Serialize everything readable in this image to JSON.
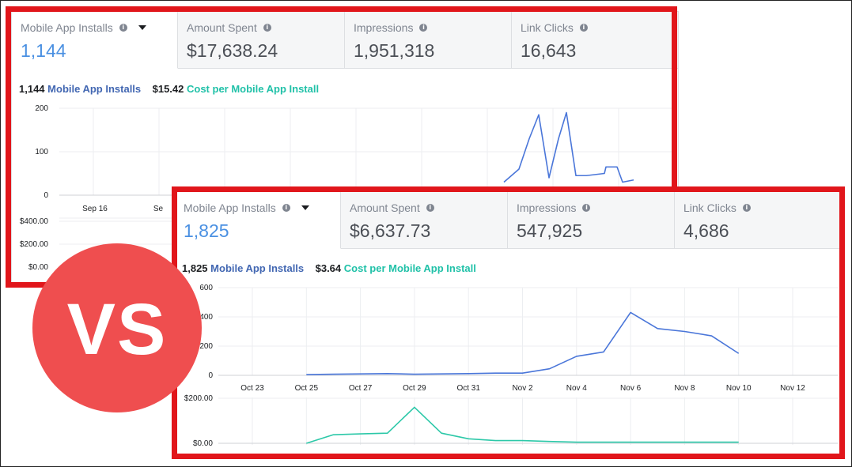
{
  "before": {
    "tabs": [
      {
        "label": "Mobile App Installs",
        "value": "1,144",
        "active": true
      },
      {
        "label": "Amount Spent",
        "value": "$17,638.24",
        "active": false
      },
      {
        "label": "Impressions",
        "value": "1,951,318",
        "active": false
      },
      {
        "label": "Link Clicks",
        "value": "16,643",
        "active": false
      }
    ],
    "summary": {
      "count": "1,144",
      "count_label": "Mobile App Installs",
      "cost": "$15.42",
      "cost_label": "Cost per Mobile App Install"
    },
    "y_ticks": [
      "200",
      "100",
      "0"
    ],
    "x_ticks": [
      "Sep 16",
      "Se"
    ],
    "cost_ticks": [
      "$400.00",
      "$200.00",
      "$0.00"
    ]
  },
  "after": {
    "tabs": [
      {
        "label": "Mobile App Installs",
        "value": "1,825",
        "active": true
      },
      {
        "label": "Amount Spent",
        "value": "$6,637.73",
        "active": false
      },
      {
        "label": "Impressions",
        "value": "547,925",
        "active": false
      },
      {
        "label": "Link Clicks",
        "value": "4,686",
        "active": false
      }
    ],
    "summary": {
      "count": "1,825",
      "count_label": "Mobile App Installs",
      "cost": "$3.64",
      "cost_label": "Cost per Mobile App Install"
    },
    "y_ticks": [
      "600",
      "400",
      "200",
      "0"
    ],
    "x_ticks": [
      "Oct 23",
      "Oct 25",
      "Oct 27",
      "Oct 29",
      "Oct 31",
      "Nov 2",
      "Nov 4",
      "Nov 6",
      "Nov 8",
      "Nov 10",
      "Nov 12"
    ],
    "cost_ticks": [
      "$200.00",
      "$0.00"
    ]
  },
  "vs_label": "VS",
  "colors": {
    "red_border": "#e1161b",
    "installs_line": "#4a76d9",
    "cost_line": "#2cc8a8",
    "vs_circle": "#ef4e4f"
  },
  "chart_data": [
    {
      "type": "line",
      "title": "",
      "series": [
        {
          "name": "Mobile App Installs",
          "values": [
            30,
            60,
            130,
            185,
            40,
            130,
            190,
            45,
            45,
            50,
            65,
            65,
            30,
            35
          ]
        }
      ],
      "x_tick_labels": [
        "Sep 16",
        "Se"
      ],
      "ylim": [
        0,
        200
      ]
    },
    {
      "type": "line",
      "title": "",
      "x": [
        "Oct 25",
        "Oct 26",
        "Oct 27",
        "Oct 28",
        "Oct 29",
        "Oct 30",
        "Oct 31",
        "Nov 1",
        "Nov 2",
        "Nov 3",
        "Nov 4",
        "Nov 5",
        "Nov 6",
        "Nov 7",
        "Nov 8",
        "Nov 9",
        "Nov 10"
      ],
      "series": [
        {
          "name": "Mobile App Installs",
          "values": [
            5,
            8,
            10,
            12,
            8,
            10,
            12,
            15,
            15,
            45,
            130,
            160,
            430,
            320,
            300,
            270,
            150
          ]
        },
        {
          "name": "Cost per Mobile App Install",
          "values": [
            0,
            38,
            42,
            45,
            160,
            45,
            20,
            12,
            12,
            8,
            5,
            5,
            5,
            5,
            5,
            5,
            5
          ]
        }
      ],
      "x_tick_labels": [
        "Oct 23",
        "Oct 25",
        "Oct 27",
        "Oct 29",
        "Oct 31",
        "Nov 2",
        "Nov 4",
        "Nov 6",
        "Nov 8",
        "Nov 10",
        "Nov 12"
      ],
      "ylim": [
        0,
        600
      ],
      "cost_ylim": [
        0,
        200
      ]
    }
  ]
}
